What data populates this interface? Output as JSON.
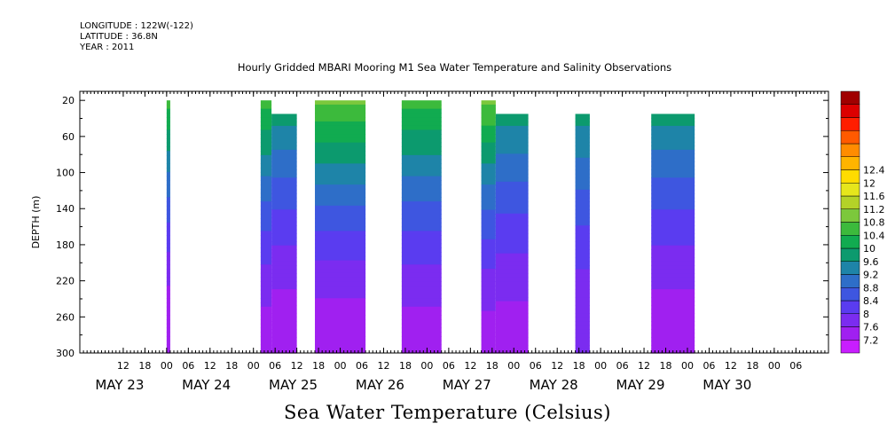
{
  "header": {
    "longitude": "LONGITUDE : 122W(-122)",
    "latitude": "LATITUDE : 36.8N",
    "year": "YEAR : 2011"
  },
  "chart_title": "Hourly Gridded MBARI Mooring M1 Sea Water Temperature and Salinity Observations",
  "bottom_title": "Sea Water Temperature (Celsius)",
  "chart_data": {
    "type": "heatmap",
    "title": "Hourly Gridded MBARI Mooring M1 Sea Water Temperature and Salinity Observations",
    "xlabel": "",
    "ylabel": "DEPTH (m)",
    "variable": "Sea Water Temperature (Celsius)",
    "xlim_hours": [
      -12,
      195
    ],
    "ylim": [
      300,
      10
    ],
    "y_inverted": true,
    "y_ticks": [
      20,
      60,
      100,
      140,
      180,
      220,
      260,
      300
    ],
    "x_hour_tick_labels": [
      {
        "h": 0,
        "label": "12"
      },
      {
        "h": 6,
        "label": "18"
      },
      {
        "h": 12,
        "label": "00"
      },
      {
        "h": 18,
        "label": "06"
      },
      {
        "h": 24,
        "label": "12"
      },
      {
        "h": 30,
        "label": "18"
      },
      {
        "h": 36,
        "label": "00"
      },
      {
        "h": 42,
        "label": "06"
      },
      {
        "h": 48,
        "label": "12"
      },
      {
        "h": 54,
        "label": "18"
      },
      {
        "h": 60,
        "label": "00"
      },
      {
        "h": 66,
        "label": "06"
      },
      {
        "h": 72,
        "label": "12"
      },
      {
        "h": 78,
        "label": "18"
      },
      {
        "h": 84,
        "label": "00"
      },
      {
        "h": 90,
        "label": "06"
      },
      {
        "h": 96,
        "label": "12"
      },
      {
        "h": 102,
        "label": "18"
      },
      {
        "h": 108,
        "label": "00"
      },
      {
        "h": 114,
        "label": "06"
      },
      {
        "h": 120,
        "label": "12"
      },
      {
        "h": 126,
        "label": "18"
      },
      {
        "h": 132,
        "label": "00"
      },
      {
        "h": 138,
        "label": "06"
      },
      {
        "h": 144,
        "label": "12"
      },
      {
        "h": 150,
        "label": "18"
      },
      {
        "h": 156,
        "label": "00"
      },
      {
        "h": 162,
        "label": "06"
      },
      {
        "h": 168,
        "label": "12"
      },
      {
        "h": 174,
        "label": "18"
      },
      {
        "h": 180,
        "label": "00"
      },
      {
        "h": 186,
        "label": "06"
      }
    ],
    "x_day_labels": [
      {
        "h": -1,
        "label": "MAY 23"
      },
      {
        "h": 23,
        "label": "MAY 24"
      },
      {
        "h": 47,
        "label": "MAY 25"
      },
      {
        "h": 71,
        "label": "MAY 26"
      },
      {
        "h": 95,
        "label": "MAY 27"
      },
      {
        "h": 119,
        "label": "MAY 28"
      },
      {
        "h": 143,
        "label": "MAY 29"
      },
      {
        "h": 167,
        "label": "MAY 30"
      }
    ],
    "colorbar": {
      "levels": [
        7.2,
        7.6,
        8,
        8.4,
        8.8,
        9.2,
        9.6,
        10,
        10.4,
        10.8,
        11.2,
        11.6,
        12,
        12.4
      ],
      "label_levels": [
        "12.4",
        "12",
        "11.6",
        "11.2",
        "10.8",
        "10.4",
        "10",
        "9.6",
        "9.2",
        "8.8",
        "8.4",
        "8",
        "7.6",
        "7.2"
      ],
      "colors": [
        "#c81eff",
        "#a020f0",
        "#7b2cf0",
        "#5a3cf0",
        "#3e56e0",
        "#2e6ec8",
        "#1e84a8",
        "#0c9a6e",
        "#11ab50",
        "#3cba3c",
        "#7cc83c",
        "#b4d228",
        "#e6e61c",
        "#ffdc00",
        "#ffb400",
        "#ff8c00",
        "#ff5a00",
        "#ff1e00",
        "#dc0000",
        "#a00000"
      ]
    },
    "data_segments": [
      {
        "start_h": 12,
        "end_h": 13,
        "top_depth": 20,
        "temps": {
          "surface": 10.6,
          "bottom": 7.2
        }
      },
      {
        "start_h": 38,
        "end_h": 41,
        "top_depth": 20,
        "temps": {
          "surface": 10.6,
          "bottom": 7.4
        }
      },
      {
        "start_h": 41,
        "end_h": 48,
        "top_depth": 35,
        "temps": {
          "surface": 9.8,
          "bottom": 7.3
        }
      },
      {
        "start_h": 53,
        "end_h": 67,
        "top_depth": 20,
        "temps": {
          "surface": 10.9,
          "bottom": 7.3
        }
      },
      {
        "start_h": 77,
        "end_h": 88,
        "top_depth": 20,
        "temps": {
          "surface": 10.6,
          "bottom": 7.4
        }
      },
      {
        "start_h": 99,
        "end_h": 103,
        "top_depth": 20,
        "temps": {
          "surface": 10.9,
          "bottom": 7.4
        }
      },
      {
        "start_h": 103,
        "end_h": 112,
        "top_depth": 35,
        "temps": {
          "surface": 9.8,
          "bottom": 7.4
        }
      },
      {
        "start_h": 125,
        "end_h": 129,
        "top_depth": 35,
        "temps": {
          "surface": 9.8,
          "bottom": 7.6
        }
      },
      {
        "start_h": 146,
        "end_h": 158,
        "top_depth": 35,
        "temps": {
          "surface": 9.8,
          "bottom": 7.3
        }
      }
    ]
  }
}
